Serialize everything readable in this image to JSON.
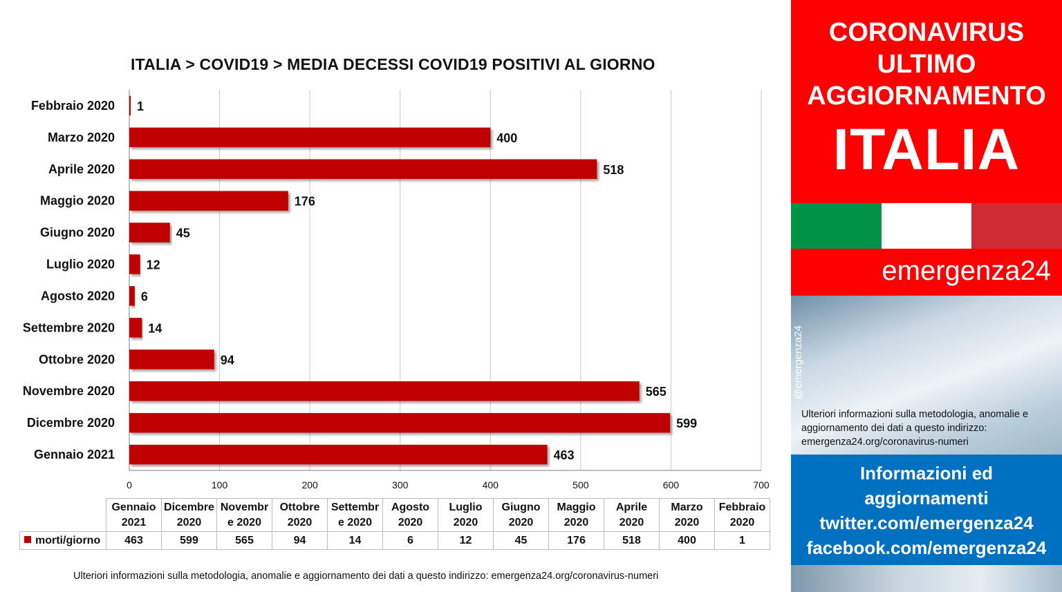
{
  "chart": {
    "title": "ITALIA >  COVID19 > MEDIA DECESSI COVID19 POSITIVI AL GIORNO"
  },
  "chart_data": {
    "type": "bar",
    "orientation": "horizontal",
    "title": "ITALIA >  COVID19 > MEDIA DECESSI COVID19 POSITIVI AL GIORNO",
    "categories": [
      "Febbraio 2020",
      "Marzo 2020",
      "Aprile 2020",
      "Maggio 2020",
      "Giugno 2020",
      "Luglio 2020",
      "Agosto 2020",
      "Settembre 2020",
      "Ottobre 2020",
      "Novembre 2020",
      "Dicembre 2020",
      "Gennaio 2021"
    ],
    "series": [
      {
        "name": "morti/giorno",
        "values": [
          1,
          400,
          518,
          176,
          45,
          12,
          6,
          14,
          94,
          565,
          599,
          463
        ],
        "color": "#c00000"
      }
    ],
    "xlim": [
      0,
      700
    ],
    "xticks": [
      0,
      100,
      200,
      300,
      400,
      500,
      600,
      700
    ],
    "grid": "vertical",
    "data_labels": true
  },
  "table": {
    "headers": [
      [
        "Gennaio",
        "2021"
      ],
      [
        "Dicembre",
        "2020"
      ],
      [
        "Novembr",
        "e 2020"
      ],
      [
        "Ottobre",
        "2020"
      ],
      [
        "Settembr",
        "e 2020"
      ],
      [
        "Agosto",
        "2020"
      ],
      [
        "Luglio",
        "2020"
      ],
      [
        "Giugno",
        "2020"
      ],
      [
        "Maggio",
        "2020"
      ],
      [
        "Aprile",
        "2020"
      ],
      [
        "Marzo",
        "2020"
      ],
      [
        "Febbraio",
        "2020"
      ]
    ],
    "legend_label": "morti/giorno",
    "values": [
      "463",
      "599",
      "565",
      "94",
      "14",
      "6",
      "12",
      "45",
      "176",
      "518",
      "400",
      "1"
    ]
  },
  "footer": {
    "note": "Ulteriori informazioni sulla metodologia, anomalie e aggiornamento dei dati a questo indirizzo: emergenza24.org/coronavirus-numeri"
  },
  "side": {
    "line1": "CORONAVIRUS",
    "line2": "ULTIMO",
    "line3": "AGGIORNAMENTO",
    "country": "ITALIA",
    "flag_colors": [
      "#009246",
      "#ffffff",
      "#ce2b37"
    ],
    "brand": "emergenza24",
    "handle": "@emergenza24",
    "photo_note": "Ulteriori informazioni sulla metodologia, anomalie e aggiornamento dei dati a questo indirizzo: emergenza24.org/coronavirus-numeri",
    "info_lines": [
      "Informazioni ed",
      "aggiornamenti",
      "twitter.com/emergenza24",
      "facebook.com/emergenza24"
    ]
  },
  "colors": {
    "bar": "#c00000",
    "side_red": "#ff0000",
    "side_blue": "#0070c0"
  }
}
